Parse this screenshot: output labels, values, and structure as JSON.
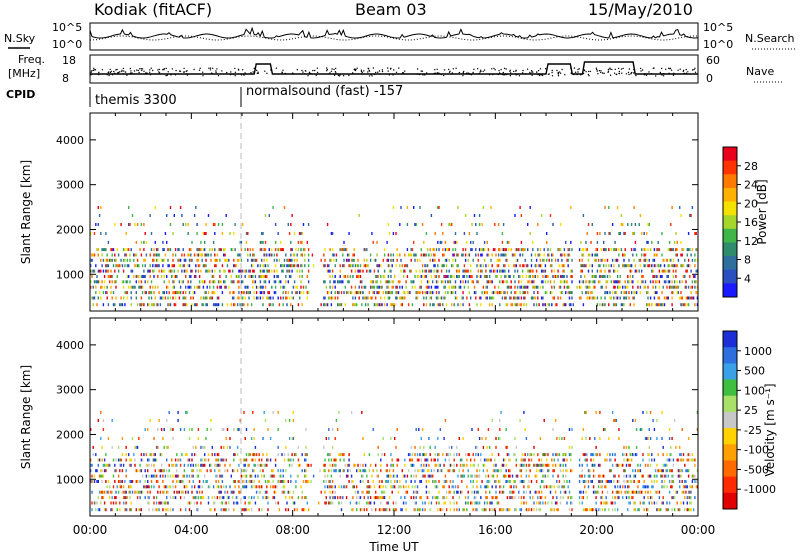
{
  "header": {
    "station": "Kodiak (fitACF)",
    "beam": "Beam 03",
    "date": "15/May/2010"
  },
  "summary_panels": {
    "nsky_label": "N.Sky",
    "nsky_ticks": [
      "10^5",
      "10^0"
    ],
    "nsearch_label": "N.Search",
    "nsearch_ticks": [
      "10^5",
      "10^0"
    ],
    "freq_label_1": "Freq.",
    "freq_label_2": "[MHz]",
    "freq_ticks": [
      "18",
      "8"
    ],
    "nave_label": "Nave",
    "nave_ticks": [
      "60",
      "0"
    ],
    "cpid_label": "CPID",
    "cpid_segments": [
      {
        "label": "themis 3300",
        "start_hour": 0,
        "end_hour": 6
      },
      {
        "label": "normalsound (fast) -157",
        "start_hour": 6,
        "end_hour": 24
      }
    ]
  },
  "chart_data": [
    {
      "type": "heatmap",
      "name": "power",
      "ylabel": "Slant Range [km]",
      "xlabel": "",
      "xlim": [
        0,
        24
      ],
      "ylim": [
        180,
        4600
      ],
      "y_ticks": [
        1000,
        2000,
        3000,
        4000
      ],
      "colorbar_label": "Power [dB]",
      "colorbar_ticks": [
        "28",
        "24",
        "20",
        "16",
        "12",
        "8",
        "4"
      ],
      "colorbar_colors": [
        "#e8001c",
        "#ff3300",
        "#ff7a00",
        "#ffb000",
        "#f5e100",
        "#a6d62a",
        "#3fb54a",
        "#2e8b6b",
        "#2e6f9e",
        "#2a4fc0",
        "#1a1aff"
      ],
      "range_gates_km": [
        310,
        460,
        580,
        700,
        820,
        940,
        1060,
        1180,
        1300,
        1420,
        1540,
        1700,
        1900,
        2100,
        2300,
        2480
      ]
    },
    {
      "type": "heatmap",
      "name": "velocity",
      "ylabel": "Slant Range [km]",
      "xlabel": "Time UT",
      "xlim": [
        0,
        24
      ],
      "ylim": [
        180,
        4600
      ],
      "y_ticks": [
        1000,
        2000,
        3000,
        4000
      ],
      "x_ticks": [
        "00:00",
        "04:00",
        "08:00",
        "12:00",
        "16:00",
        "20:00",
        "00:00"
      ],
      "colorbar_label": "Velocity [m s⁻¹]",
      "colorbar_ticks": [
        "1000",
        "500",
        "100",
        "25",
        "-25",
        "-100",
        "-500",
        "-1000"
      ],
      "colorbar_colors": [
        "#1c2fd6",
        "#2e6fe0",
        "#3aa0e8",
        "#3fbf3f",
        "#a8e06a",
        "#c8c8c8",
        "#ffd200",
        "#ffa000",
        "#ff6a00",
        "#ff2a00",
        "#e00000"
      ]
    }
  ]
}
